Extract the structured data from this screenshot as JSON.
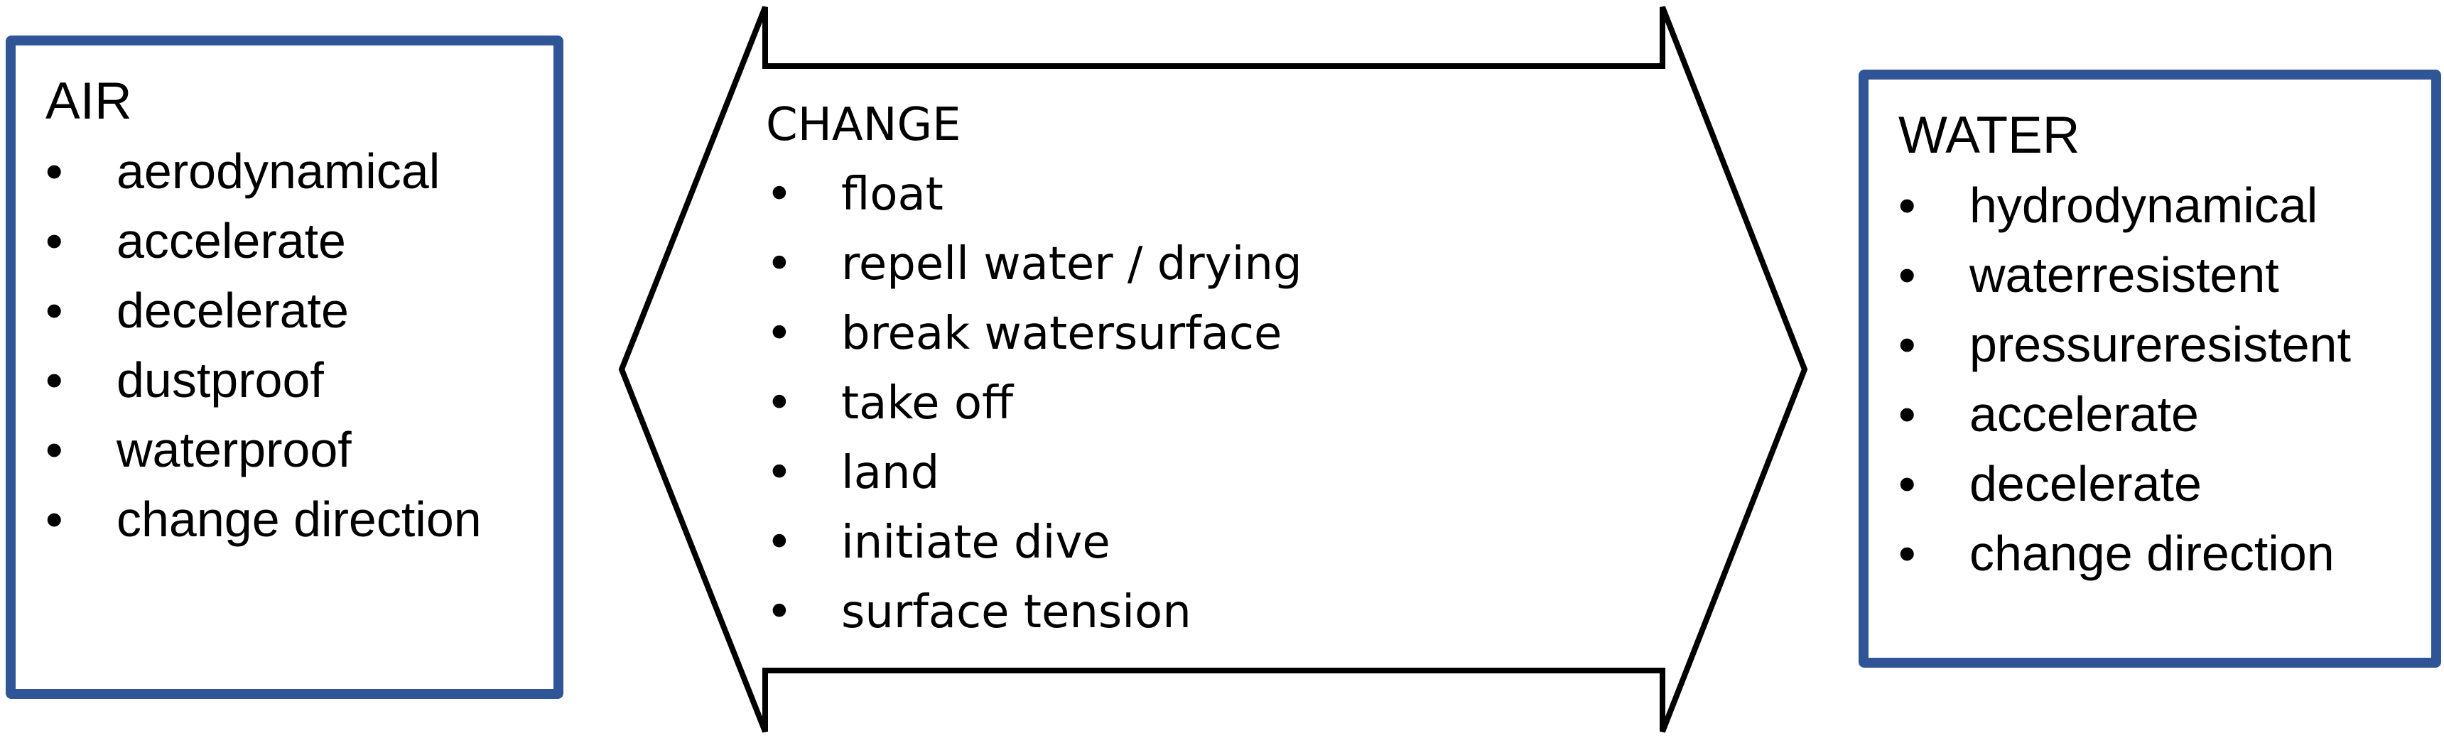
{
  "diagram": {
    "air": {
      "title": "AIR",
      "items": [
        "aerodynamical",
        "accelerate",
        "decelerate",
        "dustproof",
        "waterproof",
        "change direction"
      ]
    },
    "change": {
      "title": "CHANGE",
      "items": [
        "float",
        "repell water / drying",
        "break watersurface",
        "take off",
        "land",
        "initiate dive",
        "surface tension"
      ]
    },
    "water": {
      "title": "WATER",
      "items": [
        "hydrodynamical",
        "waterresistent",
        "pressureresistent",
        "accelerate",
        "decelerate",
        "change direction"
      ]
    },
    "bullet": "•",
    "colors": {
      "box_border": "#2f5597",
      "arrow_stroke": "#000000",
      "text": "#000000"
    }
  }
}
